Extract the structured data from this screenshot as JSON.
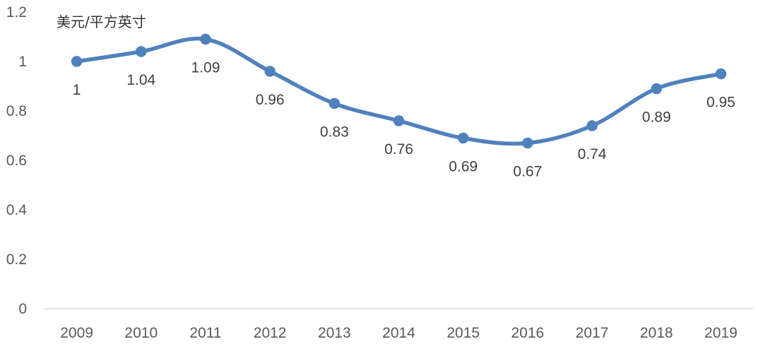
{
  "chart_data": {
    "type": "line",
    "title": "",
    "ylabel": "美元/平方英寸",
    "xlabel": "",
    "categories": [
      "2009",
      "2010",
      "2011",
      "2012",
      "2013",
      "2014",
      "2015",
      "2016",
      "2017",
      "2018",
      "2019"
    ],
    "series": [
      {
        "values": [
          1,
          1.04,
          1.09,
          0.96,
          0.83,
          0.76,
          0.69,
          0.67,
          0.74,
          0.89,
          0.95
        ],
        "color": "#4F81BD",
        "smooth": true,
        "markers": true
      }
    ],
    "data_labels": [
      "1",
      "1.04",
      "1.09",
      "0.96",
      "0.83",
      "0.76",
      "0.69",
      "0.67",
      "0.74",
      "0.89",
      "0.95"
    ],
    "ylim": [
      0,
      1.2
    ],
    "yticks": [
      "0",
      "0.2",
      "0.4",
      "0.6",
      "0.8",
      "1",
      "1.2"
    ],
    "grid": false,
    "legend": "none"
  }
}
